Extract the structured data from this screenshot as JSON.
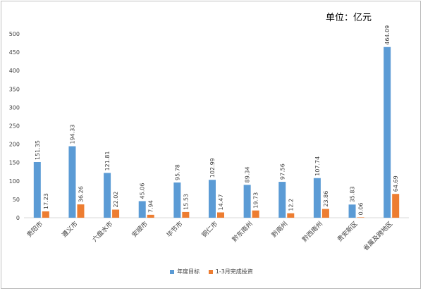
{
  "unit_label": "单位：亿元",
  "chart_data": {
    "type": "bar",
    "title": "",
    "xlabel": "",
    "ylabel": "",
    "ylim": [
      0,
      500
    ],
    "yticks": [
      0,
      50,
      100,
      150,
      200,
      250,
      300,
      350,
      400,
      450,
      500
    ],
    "grid": false,
    "legend": "bottom",
    "categories": [
      "贵阳市",
      "遵义市",
      "六盘水市",
      "安顺市",
      "毕节市",
      "铜仁市",
      "黔东南州",
      "黔南州",
      "黔西南州",
      "贵安新区",
      "省属及跨地区"
    ],
    "series": [
      {
        "name": "年度目标",
        "color": "#5b9bd5",
        "values": [
          151.35,
          194.33,
          121.81,
          45.06,
          95.78,
          102.99,
          89.34,
          97.56,
          107.74,
          35.83,
          464.09
        ],
        "labels": [
          "151.35",
          "194.33",
          "121.81",
          "45.06",
          "95.78",
          "102.99",
          "89.34",
          "97.56",
          "107.74",
          "35.83",
          "464.09"
        ]
      },
      {
        "name": "1-3月完成投资",
        "color": "#ed7d31",
        "values": [
          17.23,
          36.26,
          22.02,
          7.94,
          15.53,
          14.47,
          19.73,
          12.2,
          23.86,
          0.06,
          64.69
        ],
        "labels": [
          "17.23",
          "36.26",
          "22.02",
          "7.94",
          "15.53",
          "14.47",
          "19.73",
          "12.2",
          "23.86",
          "0.06",
          "64.69"
        ]
      }
    ]
  }
}
